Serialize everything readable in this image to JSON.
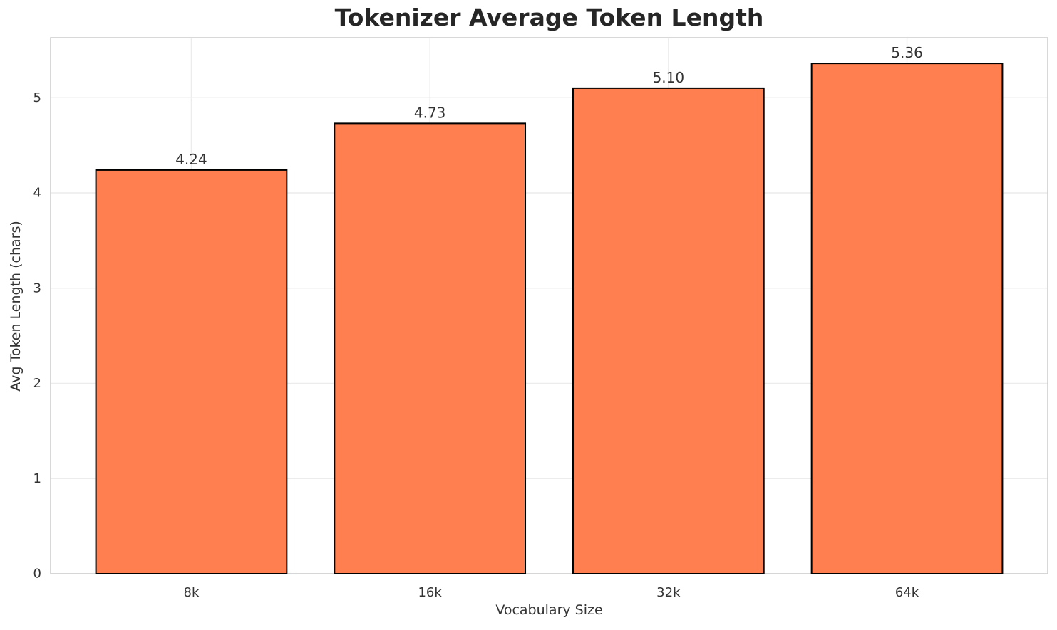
{
  "chart_data": {
    "type": "bar",
    "title": "Tokenizer Average Token Length",
    "xlabel": "Vocabulary Size",
    "ylabel": "Avg Token Length (chars)",
    "categories": [
      "8k",
      "16k",
      "32k",
      "64k"
    ],
    "values": [
      4.24,
      4.73,
      5.1,
      5.36
    ],
    "value_labels": [
      "4.24",
      "4.73",
      "5.10",
      "5.36"
    ],
    "yticks": [
      0,
      1,
      2,
      3,
      4,
      5
    ],
    "ytick_labels": [
      "0",
      "1",
      "2",
      "3",
      "4",
      "5"
    ],
    "ylim": [
      0,
      5.63
    ],
    "bar_width_fraction": 0.8,
    "grid": true,
    "legend": "none",
    "colors": {
      "bar_fill": "#FF7F50",
      "bar_edge": "#000000",
      "grid": "#ececec",
      "spine": "#cfcfcf",
      "title": "#262626",
      "text": "#333333",
      "background": "#ffffff"
    }
  }
}
